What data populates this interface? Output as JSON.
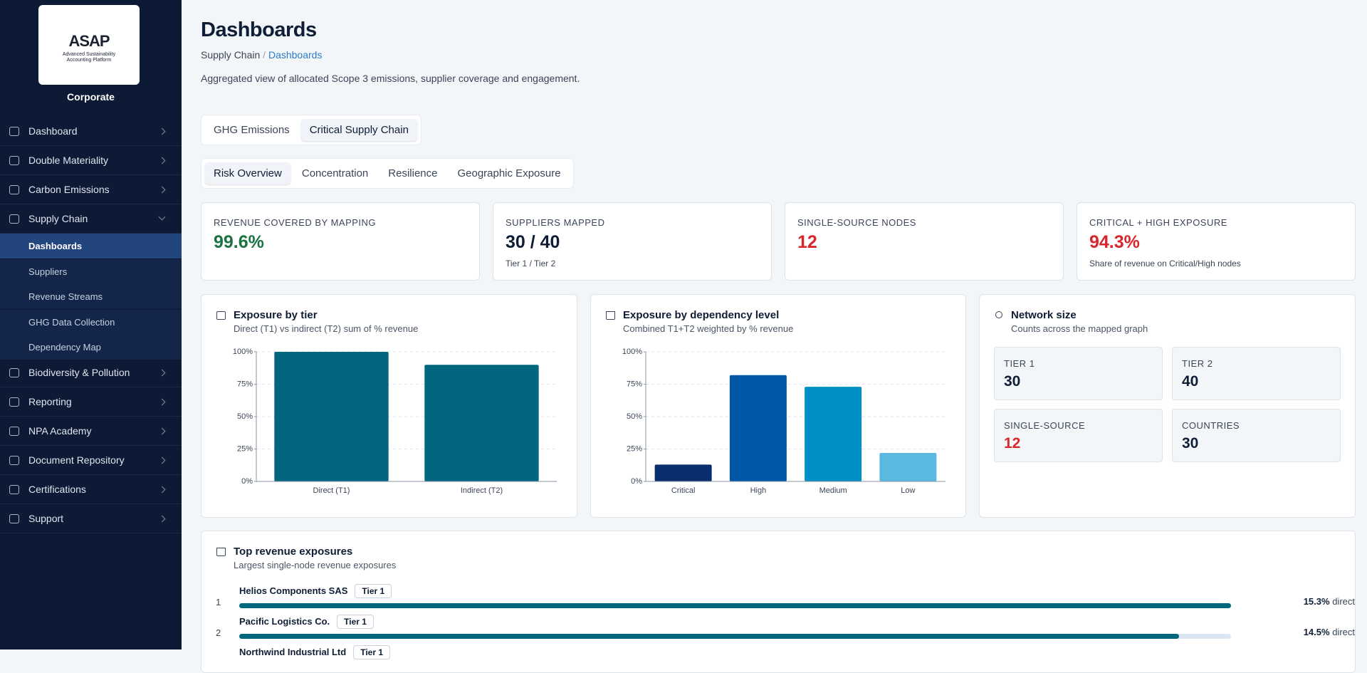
{
  "sidebar": {
    "logo": {
      "title": "ASAP",
      "subtitle": "Advanced Sustainability Accounting Platform"
    },
    "org": "Corporate",
    "nav": [
      {
        "label": "Dashboard"
      },
      {
        "label": "Double Materiality"
      },
      {
        "label": "Carbon Emissions"
      },
      {
        "label": "Supply Chain",
        "children": [
          "Dashboards",
          "Suppliers",
          "Revenue Streams",
          "GHG Data Collection",
          "Dependency Map"
        ]
      },
      {
        "label": "Biodiversity & Pollution"
      },
      {
        "label": "Reporting"
      },
      {
        "label": "NPA Academy"
      },
      {
        "label": "Document Repository"
      },
      {
        "label": "Certifications"
      },
      {
        "label": "Support"
      }
    ]
  },
  "header": {
    "title": "Dashboards",
    "breadcrumb": [
      "Supply Chain",
      "Dashboards"
    ],
    "breadcrumb_sep": "/",
    "description": "Aggregated view of allocated Scope 3 emissions, supplier coverage and engagement."
  },
  "tabs": [
    "GHG Emissions",
    "Critical Supply Chain"
  ],
  "subtabs": [
    "Risk Overview",
    "Concentration",
    "Resilience",
    "Geographic Exposure"
  ],
  "kpis": [
    {
      "label": "REVENUE COVERED BY MAPPING",
      "value": "99.6%"
    },
    {
      "label": "SUPPLIERS MAPPED",
      "value": "30 / 40",
      "note": "Tier 1 / Tier 2"
    },
    {
      "label": "SINGLE-SOURCE NODES",
      "value": "12"
    },
    {
      "label": "CRITICAL + HIGH EXPOSURE",
      "value": "94.3%",
      "note": "Share of revenue on Critical/High nodes"
    }
  ],
  "chart_data": [
    {
      "type": "bar",
      "title": "Exposure by tier",
      "subtitle": "Direct (T1) vs indirect (T2) sum of % revenue",
      "categories": [
        "Direct (T1)",
        "Indirect (T2)"
      ],
      "values": [
        100,
        90
      ],
      "colors": [
        "#03667f",
        "#03667f"
      ],
      "ylim": [
        0,
        100
      ],
      "yticks": [
        {
          "value": 0,
          "label": "0%"
        },
        {
          "value": 25,
          "label": "25%"
        },
        {
          "value": 50,
          "label": "50%"
        },
        {
          "value": 75,
          "label": "75%"
        },
        {
          "value": 100,
          "label": "100%"
        }
      ],
      "grid": true
    },
    {
      "type": "bar",
      "title": "Exposure by dependency level",
      "subtitle": "Combined T1+T2 weighted by % revenue",
      "categories": [
        "Critical",
        "High",
        "Medium",
        "Low"
      ],
      "values": [
        13,
        82,
        73,
        22
      ],
      "colors": [
        "#0a2d6e",
        "#0057a8",
        "#0090c8",
        "#5bb8e0"
      ],
      "ylim": [
        0,
        100
      ],
      "yticks": [
        {
          "value": 0,
          "label": "0%"
        },
        {
          "value": 25,
          "label": "25%"
        },
        {
          "value": 50,
          "label": "50%"
        },
        {
          "value": 75,
          "label": "75%"
        },
        {
          "value": 100,
          "label": "100%"
        }
      ],
      "grid": true
    }
  ],
  "network": {
    "title": "Network size",
    "subtitle": "Counts across the mapped graph",
    "tiles": [
      {
        "label": "TIER 1",
        "value": "30"
      },
      {
        "label": "TIER 2",
        "value": "40"
      },
      {
        "label": "SINGLE-SOURCE",
        "value": "12"
      },
      {
        "label": "COUNTRIES",
        "value": "30"
      }
    ]
  },
  "top_exposures": {
    "title": "Top revenue exposures",
    "subtitle": "Largest single-node revenue exposures",
    "unit": "direct",
    "items": [
      {
        "rank": 1,
        "name": "Helios Components SAS",
        "tier": "Tier 1",
        "value": 15.3,
        "value_label": "15.3%"
      },
      {
        "rank": 2,
        "name": "Pacific Logistics Co.",
        "tier": "Tier 1",
        "value": 14.5,
        "value_label": "14.5%"
      },
      {
        "name": "Northwind Industrial Ltd",
        "tier": "Tier 1"
      }
    ]
  }
}
